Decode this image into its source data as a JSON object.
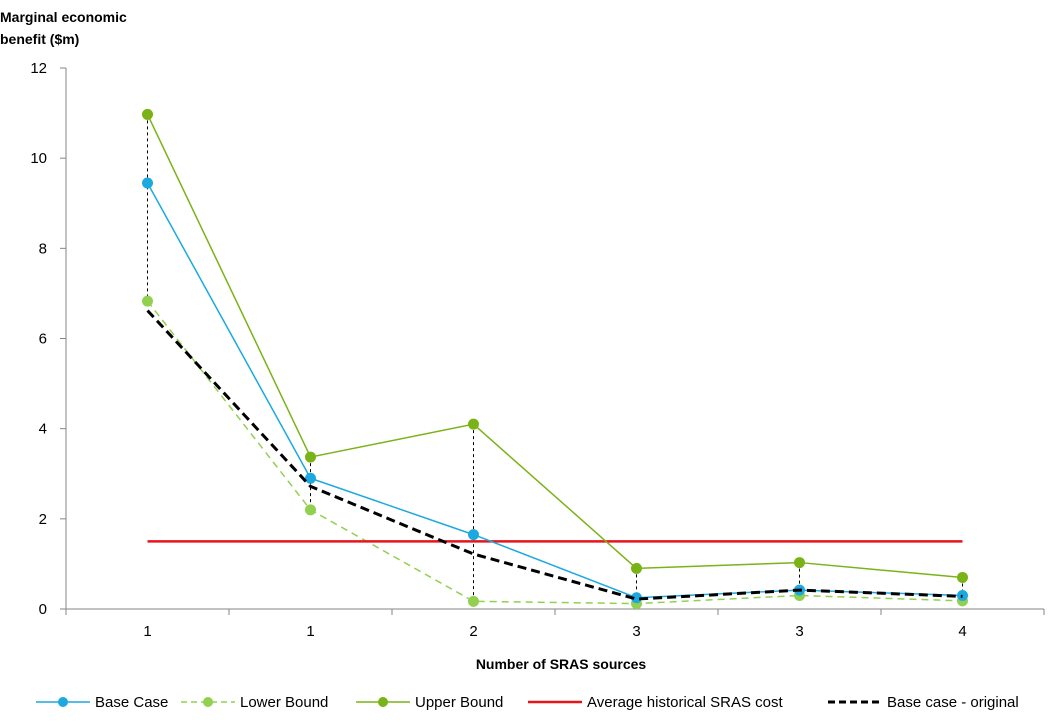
{
  "chart_data": {
    "type": "line",
    "ylabel_lines": [
      "Marginal economic",
      "benefit ($m)"
    ],
    "xlabel": "Number of SRAS sources",
    "categories": [
      "1",
      "1",
      "2",
      "3",
      "3",
      "4"
    ],
    "ylim": [
      0,
      12
    ],
    "yticks": [
      "0",
      "2",
      "4",
      "6",
      "8",
      "10",
      "12"
    ],
    "grid": false,
    "legend_position": "bottom",
    "range_connectors": "dashed vertical lines from Lower Bound to Upper Bound at each category",
    "series": [
      {
        "name": "Base Case",
        "color": "#1CA9E0",
        "style": "solid",
        "marker": "circle",
        "values": [
          9.45,
          2.9,
          1.65,
          0.25,
          0.42,
          0.3
        ]
      },
      {
        "name": "Lower Bound",
        "color": "#92D050",
        "style": "dashed",
        "marker": "circle",
        "values": [
          6.83,
          2.2,
          0.17,
          0.12,
          0.3,
          0.18
        ]
      },
      {
        "name": "Upper Bound",
        "color": "#7AB317",
        "style": "solid",
        "marker": "circle",
        "values": [
          10.97,
          3.37,
          4.1,
          0.9,
          1.03,
          0.7
        ]
      },
      {
        "name": "Average historical SRAS cost",
        "color": "#E8141B",
        "style": "solid",
        "marker": "none",
        "values": [
          1.5,
          1.5,
          1.5,
          1.5,
          1.5,
          1.5
        ]
      },
      {
        "name": "Base case - original",
        "color": "#000000",
        "style": "dashed",
        "marker": "none",
        "values": [
          6.62,
          2.72,
          1.22,
          0.22,
          0.42,
          0.28
        ]
      }
    ]
  }
}
